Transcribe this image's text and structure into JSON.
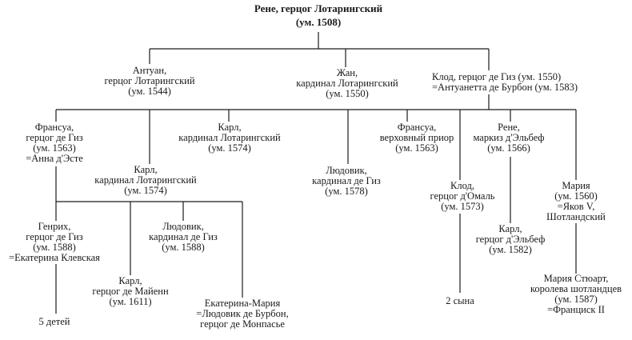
{
  "colors": {
    "ink": "#1a1a1a",
    "background": "#ffffff"
  },
  "nodes": {
    "rene": {
      "lines": [
        "Рене, герцог Лотарингский",
        "(ум. 1508)"
      ]
    },
    "antoine": {
      "lines": [
        "Антуан,",
        "герцог Лотарингский",
        "(ум. 1544)"
      ]
    },
    "jean": {
      "lines": [
        "Жан,",
        "кардинал Лотарингский",
        "(ум. 1550)"
      ]
    },
    "claude": {
      "lines": [
        "Клод, герцог де Гиз (ум. 1550)",
        "=Антуанетта де Бурбон (ум. 1583)"
      ]
    },
    "francois1": {
      "lines": [
        "Франсуа,",
        "герцог де Гиз",
        "(ум. 1563)",
        "=Анна д'Эсте"
      ]
    },
    "charles_a": {
      "lines": [
        "Карл,",
        "кардинал Лотарингский",
        "(ум. 1574)"
      ]
    },
    "charles_b": {
      "lines": [
        "Карл,",
        "кардинал Лотарингский",
        "(ум. 1574)"
      ]
    },
    "louis1": {
      "lines": [
        "Людовик,",
        "кардинал де Гиз",
        "(ум. 1578)"
      ]
    },
    "francois_prior": {
      "lines": [
        "Франсуа,",
        "верховный приор",
        "(ум. 1563)"
      ]
    },
    "claude_aumale": {
      "lines": [
        "Клод,",
        "герцог д'Омаль",
        "(ум. 1573)"
      ]
    },
    "rene_elbeuf": {
      "lines": [
        "Рене,",
        "маркиз д'Эльбеф",
        "(ум. 1566)"
      ]
    },
    "marie": {
      "lines": [
        "Мария",
        "(ум. 1560)",
        "=Яков V,",
        "Шотландский"
      ]
    },
    "henri": {
      "lines": [
        "Генрих,",
        "герцог де Гиз",
        "(ум. 1588)",
        "=Екатерина Клевская"
      ]
    },
    "louis2": {
      "lines": [
        "Людовик,",
        "кардинал де Гиз",
        "(ум. 1588)"
      ]
    },
    "charles_mayenne": {
      "lines": [
        "Карл,",
        "герцог де Майенн",
        "(ум. 1611)"
      ]
    },
    "catherine_marie": {
      "lines": [
        "Екатерина-Мария",
        "=Людовик де Бурбон,",
        "герцог де Монпасье"
      ]
    },
    "five_children": {
      "lines": [
        "5 детей"
      ]
    },
    "two_sons": {
      "lines": [
        "2 сына"
      ]
    },
    "charles_elbeuf": {
      "lines": [
        "Карл,",
        "герцог д'Эльбеф",
        "(ум. 1582)"
      ]
    },
    "mary_stuart": {
      "lines": [
        "Мария Стюарт,",
        "королева шотландцев",
        "(ум. 1587)",
        "=Франциск II"
      ]
    }
  }
}
